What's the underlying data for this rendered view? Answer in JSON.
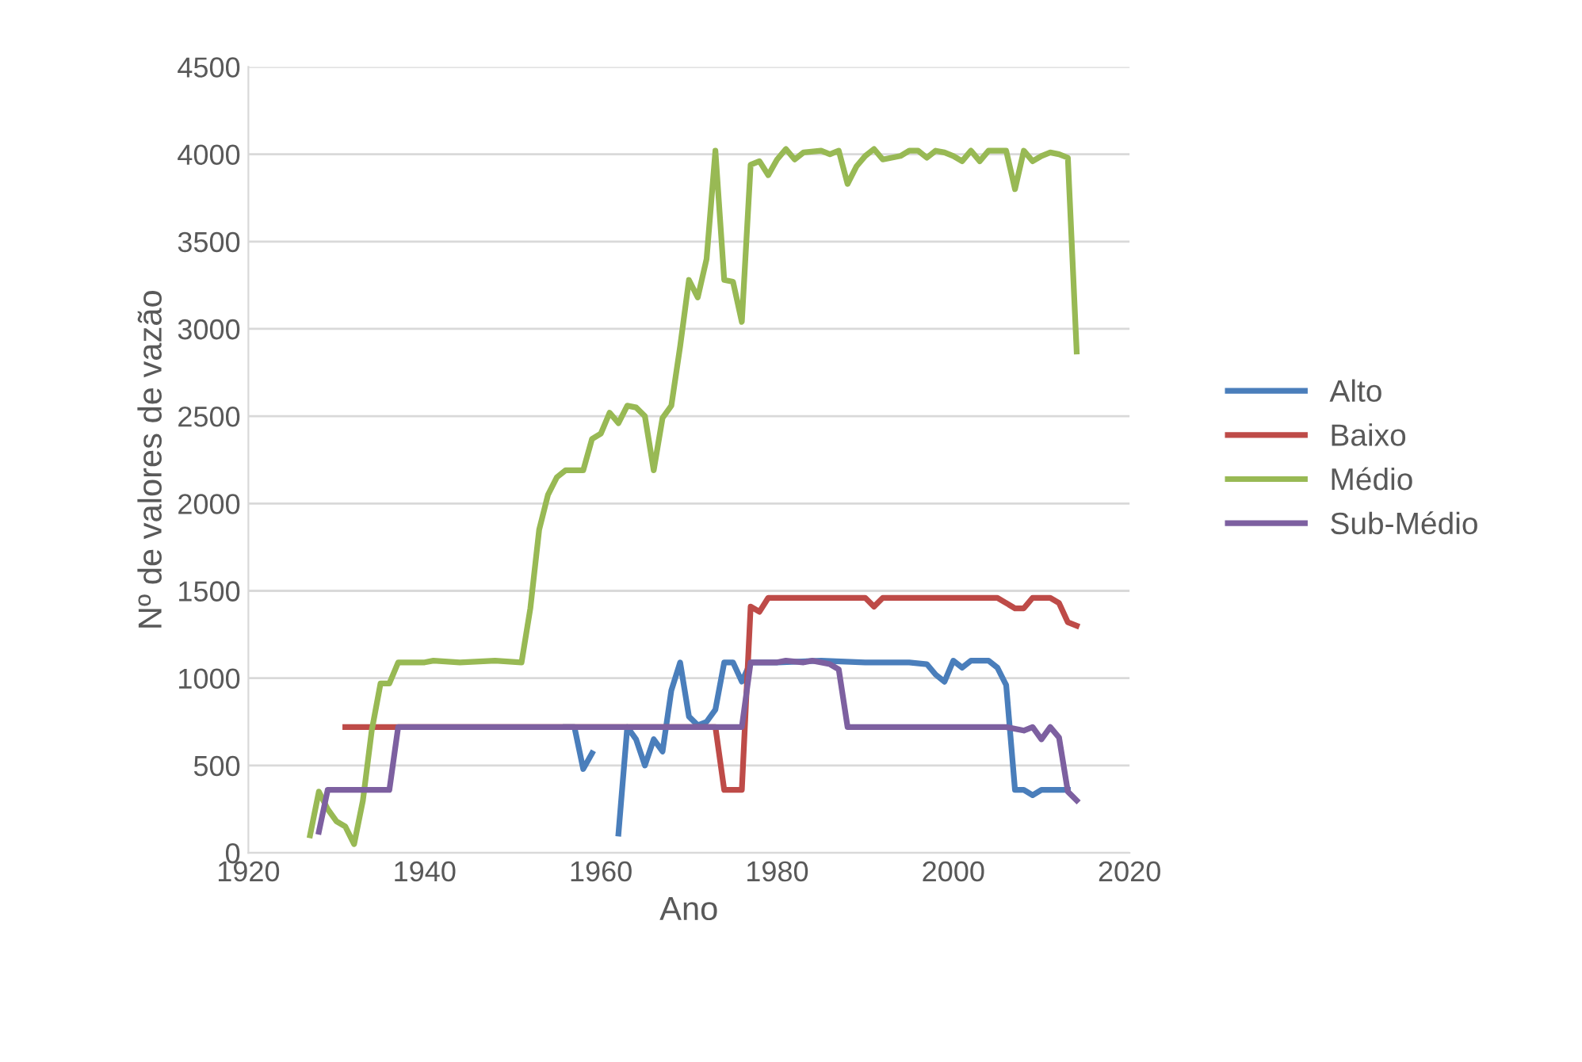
{
  "chart_data": {
    "type": "line",
    "xlabel": "Ano",
    "ylabel": "Nº de valores de vazão",
    "xlim": [
      1920,
      2020
    ],
    "xticks": [
      1920,
      1940,
      1960,
      1980,
      2000,
      2020
    ],
    "ylim": [
      0,
      4500
    ],
    "yticks": [
      0,
      500,
      1000,
      1500,
      2000,
      2500,
      3000,
      3500,
      4000,
      4500
    ],
    "grid": "y",
    "legend": "right",
    "marker": "none",
    "line_style": "solid",
    "series": [
      {
        "name": "Alto",
        "color": "#4a7ebb",
        "x": [
          1956,
          1957,
          1958,
          1959,
          1960,
          1961,
          1962,
          1963,
          1964,
          1965,
          1966,
          1967,
          1968,
          1969,
          1970,
          1971,
          1972,
          1973,
          1974,
          1975,
          1976,
          1977,
          1980,
          1985,
          1990,
          1995,
          1997,
          1998,
          1999,
          2000,
          2001,
          2002,
          2004,
          2005,
          2006,
          2007,
          2008,
          2009,
          2010,
          2013
        ],
        "values": [
          720,
          720,
          480,
          570,
          null,
          null,
          110,
          720,
          650,
          500,
          650,
          580,
          930,
          1090,
          780,
          730,
          750,
          820,
          1090,
          1090,
          980,
          1090,
          1090,
          1100,
          1090,
          1090,
          1080,
          1020,
          980,
          1100,
          1060,
          1100,
          1100,
          1060,
          960,
          360,
          360,
          330,
          360,
          360
        ]
      },
      {
        "name": "Baixo",
        "color": "#be4b48",
        "x": [
          1931,
          1973,
          1974,
          1976,
          1977,
          1978,
          1979,
          1990,
          1991,
          1992,
          2005,
          2007,
          2008,
          2009,
          2011,
          2012,
          2013,
          2014
        ],
        "values": [
          720,
          720,
          360,
          360,
          1410,
          1380,
          1460,
          1460,
          1410,
          1460,
          1460,
          1400,
          1400,
          1460,
          1460,
          1430,
          1320,
          1300
        ]
      },
      {
        "name": "Médio",
        "color": "#98b954",
        "x": [
          1927,
          1928,
          1929,
          1930,
          1931,
          1932,
          1933,
          1934,
          1935,
          1936,
          1937,
          1940,
          1941,
          1944,
          1948,
          1951,
          1952,
          1953,
          1954,
          1955,
          1956,
          1958,
          1959,
          1960,
          1961,
          1962,
          1963,
          1964,
          1965,
          1966,
          1967,
          1968,
          1969,
          1970,
          1971,
          1972,
          1973,
          1974,
          1975,
          1976,
          1977,
          1978,
          1979,
          1980,
          1981,
          1982,
          1983,
          1985,
          1986,
          1987,
          1988,
          1989,
          1990,
          1991,
          1992,
          1993,
          1994,
          1995,
          1996,
          1997,
          1998,
          1999,
          2000,
          2001,
          2002,
          2003,
          2004,
          2006,
          2007,
          2008,
          2009,
          2010,
          2011,
          2012,
          2013,
          2014
        ],
        "values": [
          100,
          350,
          250,
          180,
          150,
          50,
          300,
          700,
          970,
          970,
          1090,
          1090,
          1100,
          1090,
          1100,
          1090,
          1400,
          1850,
          2050,
          2150,
          2190,
          2190,
          2370,
          2400,
          2520,
          2460,
          2560,
          2550,
          2500,
          2190,
          2490,
          2560,
          2900,
          3280,
          3180,
          3400,
          4020,
          3280,
          3270,
          3040,
          3940,
          3960,
          3880,
          3970,
          4030,
          3970,
          4010,
          4020,
          4000,
          4020,
          3830,
          3930,
          3990,
          4030,
          3970,
          3980,
          3990,
          4020,
          4020,
          3980,
          4020,
          4010,
          3990,
          3960,
          4020,
          3960,
          4020,
          4020,
          3800,
          4020,
          3960,
          3990,
          4010,
          4000,
          3980,
          2870
        ]
      },
      {
        "name": "Sub-Médio",
        "color": "#7d60a0",
        "x": [
          1928,
          1929,
          1936,
          1937,
          1976,
          1977,
          1980,
          1981,
          1983,
          1984,
          1986,
          1987,
          1988,
          2006,
          2008,
          2009,
          2010,
          2011,
          2012,
          2013,
          2014
        ],
        "values": [
          120,
          360,
          360,
          720,
          720,
          1090,
          1090,
          1100,
          1090,
          1100,
          1080,
          1050,
          720,
          720,
          700,
          720,
          650,
          720,
          660,
          350,
          300
        ]
      }
    ]
  }
}
